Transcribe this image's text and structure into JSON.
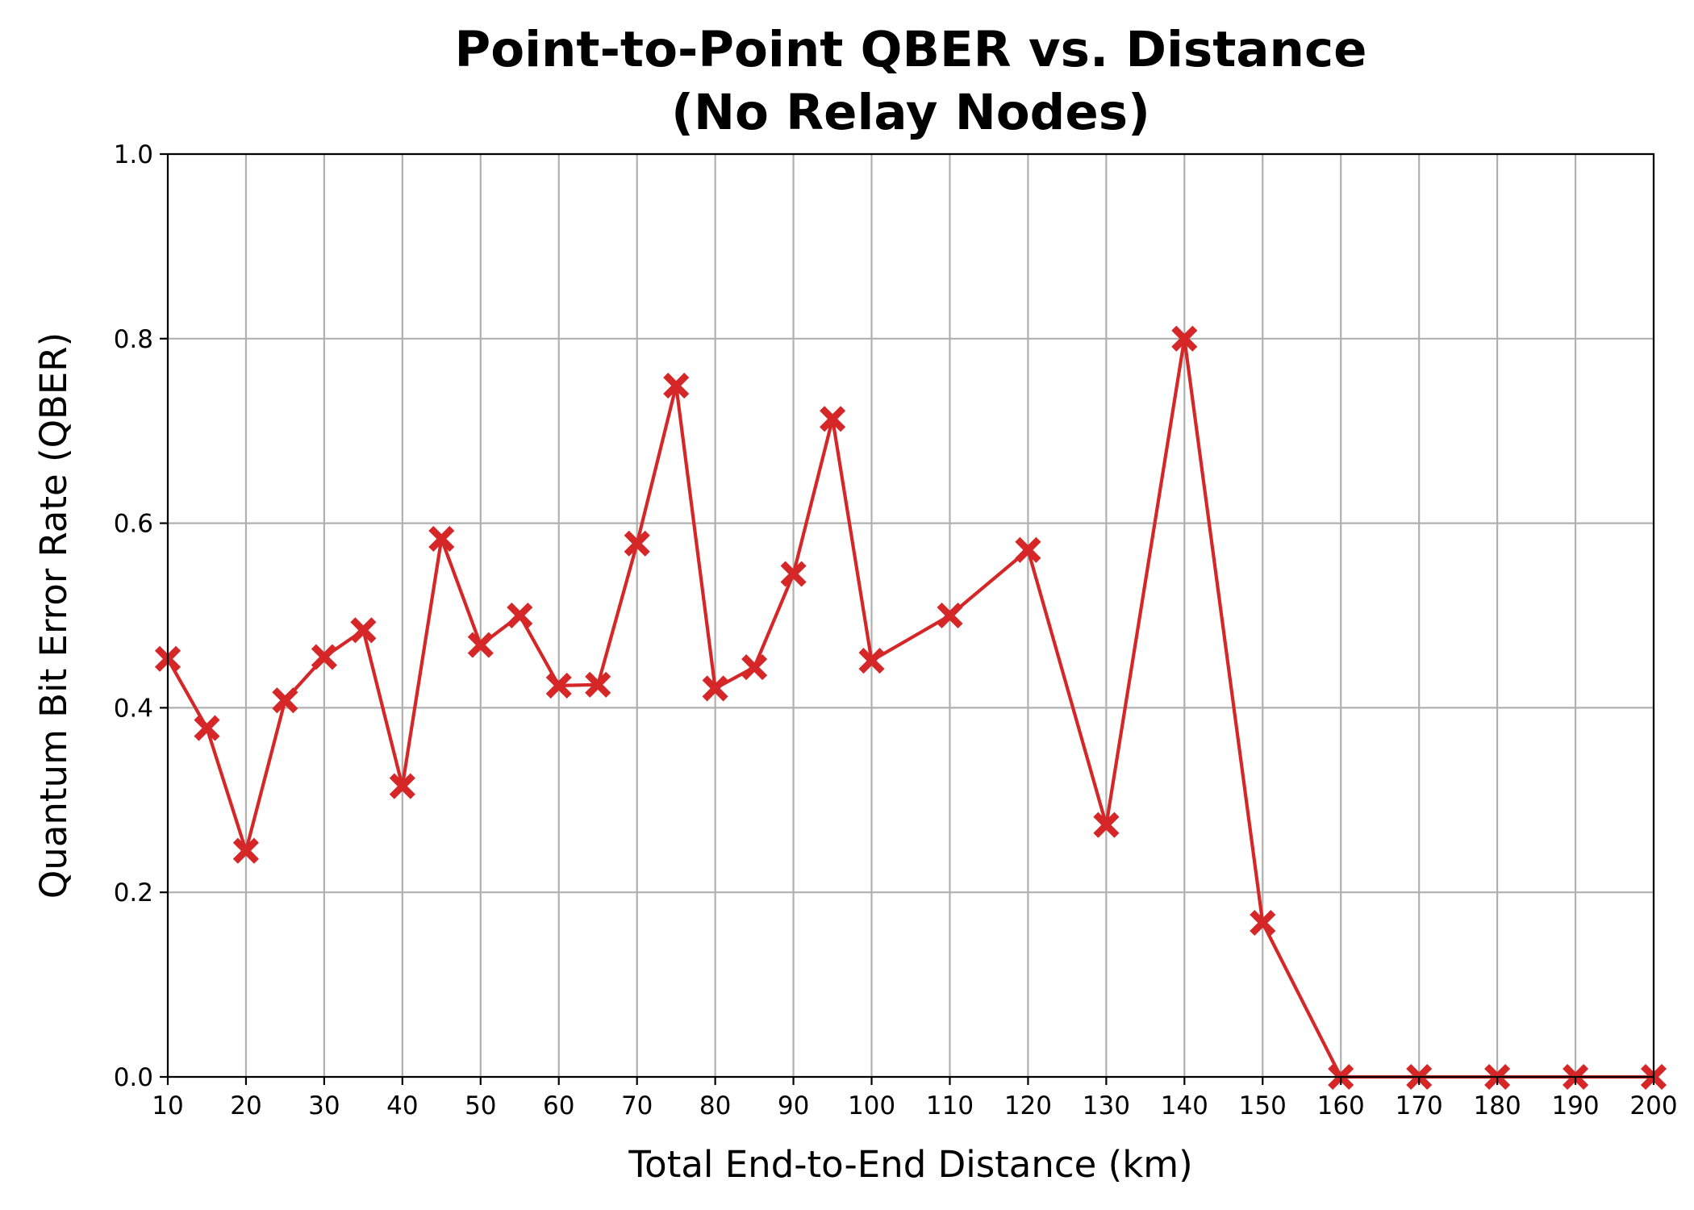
{
  "chart_data": {
    "type": "line",
    "title_line1": "Point-to-Point QBER vs. Distance",
    "title_line2": "(No Relay Nodes)",
    "xlabel": "Total End-to-End Distance (km)",
    "ylabel": "Quantum Bit Error Rate (QBER)",
    "xlim": [
      10,
      200
    ],
    "ylim": [
      0.0,
      1.0
    ],
    "xticks": [
      10,
      20,
      30,
      40,
      50,
      60,
      70,
      80,
      90,
      100,
      110,
      120,
      130,
      140,
      150,
      160,
      170,
      180,
      190,
      200
    ],
    "xtick_labels": [
      "10",
      "20",
      "30",
      "40",
      "50",
      "60",
      "70",
      "80",
      "90",
      "100",
      "110",
      "120",
      "130",
      "140",
      "150",
      "160",
      "170",
      "180",
      "190",
      "200"
    ],
    "yticks": [
      0.0,
      0.2,
      0.4,
      0.6,
      0.8,
      1.0
    ],
    "ytick_labels": [
      "0.0",
      "0.2",
      "0.4",
      "0.6",
      "0.8",
      "1.0"
    ],
    "grid": true,
    "series": [
      {
        "color": "#d62728",
        "marker": "X",
        "x": [
          10,
          15,
          20,
          25,
          30,
          35,
          40,
          45,
          50,
          55,
          60,
          65,
          70,
          75,
          80,
          85,
          90,
          95,
          100,
          110,
          120,
          130,
          140,
          150,
          160,
          170,
          180,
          190,
          200
        ],
        "y": [
          0.453,
          0.378,
          0.245,
          0.408,
          0.455,
          0.484,
          0.315,
          0.583,
          0.468,
          0.5,
          0.424,
          0.425,
          0.578,
          0.749,
          0.421,
          0.444,
          0.545,
          0.713,
          0.451,
          0.5,
          0.571,
          0.273,
          0.8,
          0.167,
          0.0,
          0.0,
          0.0,
          0.0,
          0.0
        ]
      }
    ]
  }
}
